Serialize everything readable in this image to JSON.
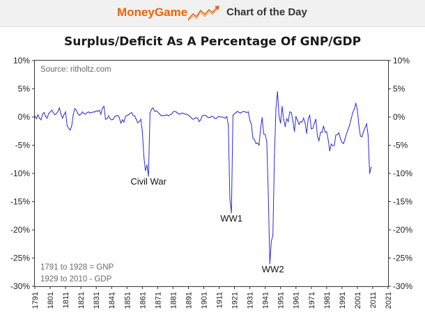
{
  "header": {
    "brand": "MoneyGame",
    "section": "Chart of the Day",
    "logo_icon": "rising-trend-arrow-icon"
  },
  "colors": {
    "brand_orange": "#e8640c",
    "series_line": "#2b2bc7",
    "banner_bg": "#f1f1f1"
  },
  "chart_data": {
    "type": "line",
    "title": "Surplus/Deficit As A Percentage Of GNP/GDP",
    "xlabel": "",
    "ylabel": "",
    "xlim": [
      1791,
      2021
    ],
    "ylim": [
      -30,
      10
    ],
    "x_ticks": [
      "1791",
      "1801",
      "1811",
      "1821",
      "1831",
      "1841",
      "1851",
      "1861",
      "1871",
      "1881",
      "1891",
      "1901",
      "1911",
      "1921",
      "1931",
      "1941",
      "1951",
      "1961",
      "1971",
      "1981",
      "1991",
      "2001",
      "2011",
      "2021"
    ],
    "y_ticks_left": [
      "10%",
      "5%",
      "0%",
      "-5%",
      "-10%",
      "-15%",
      "-20%",
      "-25%",
      "-30%"
    ],
    "y_ticks_right": [
      "10%",
      "5%",
      "0%",
      "-5%",
      "-10%",
      "-15%",
      "-20%",
      "-25%",
      "-30%"
    ],
    "grid": false,
    "source_note": "Source: ritholtz.com",
    "data_note_1": "1791 to 1928 = GNP",
    "data_note_2": "1929 to 2010 - GDP",
    "annotations": [
      {
        "text": "Civil War",
        "x": 1865,
        "y": -12
      },
      {
        "text": "WW1",
        "x": 1919,
        "y": -18.5
      },
      {
        "text": "WW2",
        "x": 1946,
        "y": -27.5
      }
    ],
    "series": [
      {
        "x": [
          1791,
          1792,
          1793,
          1794,
          1795,
          1796,
          1797,
          1798,
          1799,
          1800,
          1801,
          1802,
          1803,
          1804,
          1805,
          1806,
          1807,
          1808,
          1809,
          1810,
          1811,
          1812,
          1813,
          1814,
          1815,
          1816,
          1817,
          1818,
          1819,
          1820,
          1821,
          1822,
          1823,
          1824,
          1825,
          1826,
          1827,
          1828,
          1829,
          1830,
          1831,
          1832,
          1833,
          1834,
          1835,
          1836,
          1837,
          1838,
          1839,
          1840,
          1841,
          1842,
          1843,
          1844,
          1845,
          1846,
          1847,
          1848,
          1849,
          1850,
          1851,
          1852,
          1853,
          1854,
          1855,
          1856,
          1857,
          1858,
          1859,
          1860,
          1861,
          1862,
          1863,
          1864,
          1865,
          1866,
          1867,
          1868,
          1869,
          1870,
          1871,
          1872,
          1873,
          1874,
          1875,
          1876,
          1877,
          1878,
          1879,
          1880,
          1881,
          1882,
          1883,
          1884,
          1885,
          1886,
          1887,
          1888,
          1889,
          1890,
          1891,
          1892,
          1893,
          1894,
          1895,
          1896,
          1897,
          1898,
          1899,
          1900,
          1901,
          1902,
          1903,
          1904,
          1905,
          1906,
          1907,
          1908,
          1909,
          1910,
          1911,
          1912,
          1913,
          1914,
          1915,
          1916,
          1917,
          1918,
          1919,
          1920,
          1921,
          1922,
          1923,
          1924,
          1925,
          1926,
          1927,
          1928,
          1929,
          1930,
          1931,
          1932,
          1933,
          1934,
          1935,
          1936,
          1937,
          1938,
          1939,
          1940,
          1941,
          1942,
          1943,
          1944,
          1945,
          1946,
          1947,
          1948,
          1949,
          1950,
          1951,
          1952,
          1953,
          1954,
          1955,
          1956,
          1957,
          1958,
          1959,
          1960,
          1961,
          1962,
          1963,
          1964,
          1965,
          1966,
          1967,
          1968,
          1969,
          1970,
          1971,
          1972,
          1973,
          1974,
          1975,
          1976,
          1977,
          1978,
          1979,
          1980,
          1981,
          1982,
          1983,
          1984,
          1985,
          1986,
          1987,
          1988,
          1989,
          1990,
          1991,
          1992,
          1993,
          1994,
          1995,
          1996,
          1997,
          1998,
          1999,
          2000,
          2001,
          2002,
          2003,
          2004,
          2005,
          2006,
          2007,
          2008,
          2009,
          2010
        ],
        "y": [
          0.2,
          -0.3,
          0.4,
          -0.2,
          -0.5,
          0.5,
          0.8,
          0.1,
          -0.2,
          0.6,
          0.9,
          1.2,
          0.8,
          0.4,
          0.6,
          1.0,
          1.6,
          0.5,
          -0.2,
          0.4,
          0.9,
          -1.5,
          -2.0,
          -2.3,
          -1.6,
          0.4,
          1.5,
          1.2,
          0.6,
          0.3,
          0.5,
          0.9,
          0.6,
          0.5,
          0.8,
          0.9,
          0.7,
          0.8,
          0.9,
          0.9,
          1.1,
          1.0,
          1.2,
          0.5,
          1.6,
          1.9,
          -0.4,
          -0.3,
          0.2,
          -0.3,
          -0.5,
          -0.4,
          0.1,
          0.2,
          0.3,
          -0.1,
          -1.1,
          -0.5,
          -0.9,
          0.1,
          0.3,
          0.4,
          0.6,
          0.8,
          0.3,
          0.2,
          -0.4,
          -1.0,
          -0.8,
          -0.4,
          -2.5,
          -7.0,
          -9.5,
          -8.5,
          -10.5,
          0.7,
          1.4,
          1.6,
          1.0,
          1.1,
          0.9,
          0.6,
          0.3,
          0.2,
          0.3,
          0.3,
          0.4,
          0.2,
          0.4,
          0.5,
          0.9,
          1.0,
          0.9,
          0.7,
          0.5,
          0.6,
          0.7,
          0.6,
          0.5,
          0.5,
          0.3,
          0.1,
          -0.2,
          -0.4,
          -0.3,
          -0.1,
          -0.2,
          -0.8,
          -0.5,
          0.2,
          0.3,
          0.3,
          0.1,
          -0.1,
          -0.1,
          0.1,
          0.1,
          -0.2,
          -0.3,
          0.0,
          0.1,
          0.0,
          0.0,
          -0.1,
          -0.2,
          0.1,
          -1.5,
          -14.5,
          -17.0,
          0.3,
          0.6,
          0.8,
          1.0,
          0.8,
          0.7,
          0.9,
          1.0,
          0.9,
          0.8,
          0.9,
          -0.6,
          -1.3,
          -3.8,
          -4.0,
          -4.7,
          -4.6,
          -5.0,
          -2.0,
          -0.1,
          -3.0,
          -3.1,
          -4.3,
          -13.5,
          -26.0,
          -22.0,
          -21.0,
          -7.0,
          1.5,
          4.5,
          0.2,
          -1.1,
          1.9,
          -0.4,
          -1.7,
          -0.3,
          -0.8,
          0.9,
          0.8,
          -0.6,
          -2.6,
          0.1,
          -0.6,
          -1.3,
          -0.8,
          -0.9,
          -0.2,
          -1.1,
          -2.9,
          -0.3,
          0.3,
          -2.1,
          -2.0,
          -1.1,
          -0.4,
          -3.4,
          -4.2,
          -2.7,
          -2.7,
          -1.6,
          -2.7,
          -2.6,
          -4.0,
          -6.0,
          -4.8,
          -5.1,
          -5.0,
          -3.2,
          -3.1,
          -2.8,
          -3.9,
          -4.5,
          -4.7,
          -3.9,
          -2.9,
          -2.2,
          -1.4,
          -0.3,
          0.8,
          1.4,
          2.4,
          1.3,
          -1.5,
          -3.4,
          -3.5,
          -2.6,
          -1.9,
          -1.2,
          -3.2,
          -10.0,
          -8.9
        ]
      }
    ]
  }
}
